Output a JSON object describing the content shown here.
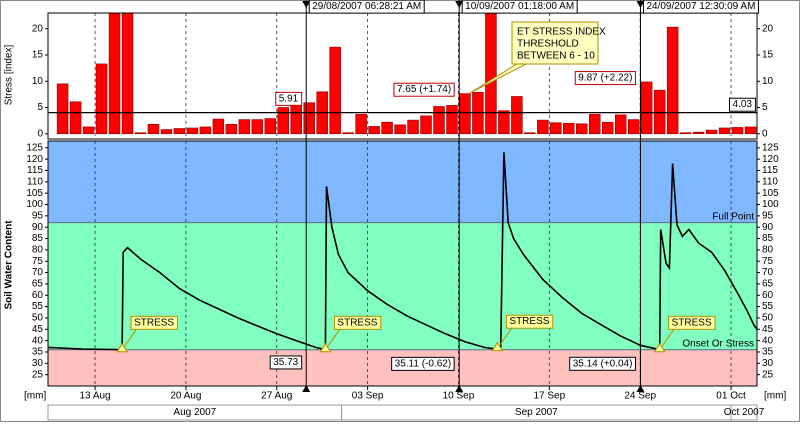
{
  "chart_data": [
    {
      "type": "bar",
      "y_label": "Stress [index]",
      "color": "#ff0000",
      "x": [
        "2007-08-10",
        "2007-08-11",
        "2007-08-12",
        "2007-08-13",
        "2007-08-14",
        "2007-08-15",
        "2007-08-16",
        "2007-08-17",
        "2007-08-18",
        "2007-08-19",
        "2007-08-20",
        "2007-08-21",
        "2007-08-22",
        "2007-08-23",
        "2007-08-24",
        "2007-08-25",
        "2007-08-26",
        "2007-08-27",
        "2007-08-28",
        "2007-08-29",
        "2007-08-30",
        "2007-08-31",
        "2007-09-01",
        "2007-09-02",
        "2007-09-03",
        "2007-09-04",
        "2007-09-05",
        "2007-09-06",
        "2007-09-07",
        "2007-09-08",
        "2007-09-09",
        "2007-09-10",
        "2007-09-11",
        "2007-09-12",
        "2007-09-13",
        "2007-09-14",
        "2007-09-15",
        "2007-09-16",
        "2007-09-17",
        "2007-09-18",
        "2007-09-19",
        "2007-09-20",
        "2007-09-21",
        "2007-09-22",
        "2007-09-23",
        "2007-09-24",
        "2007-09-25",
        "2007-09-26",
        "2007-09-27",
        "2007-09-28",
        "2007-09-29",
        "2007-09-30",
        "2007-10-01",
        "2007-10-02"
      ],
      "values": [
        9.5,
        6.1,
        1.3,
        13.3,
        23,
        23,
        0.2,
        1.8,
        0.8,
        1,
        1.1,
        1.3,
        2.8,
        1.8,
        2.7,
        2.7,
        2.9,
        5,
        6.2,
        5.91,
        8,
        16.5,
        0.2,
        3.7,
        1.4,
        2.2,
        1.7,
        2.6,
        3.4,
        5.2,
        5.4,
        7.65,
        7.9,
        23,
        4.4,
        7.1,
        0.2,
        2.6,
        2.1,
        2,
        1.9,
        3.7,
        2.2,
        3.6,
        2.7,
        9.87,
        8.3,
        20.3,
        0.2,
        0.3,
        0.7,
        1.1,
        1.2,
        1.3
      ],
      "ylim": [
        -1,
        23
      ],
      "yticks": [
        0,
        5,
        10,
        15,
        20
      ],
      "threshold": 4.03
    },
    {
      "type": "line",
      "y_label": "Soil Water Content",
      "color": "#000000",
      "x": [
        "2007-08-09T09:00",
        "2007-08-12T00:00",
        "2007-08-15T02:00",
        "2007-08-15T04:00",
        "2007-08-15T12:00",
        "2007-08-16T12:00",
        "2007-08-18T00:00",
        "2007-08-19T12:00",
        "2007-08-21T00:00",
        "2007-08-22T12:00",
        "2007-08-24T00:00",
        "2007-08-25T12:00",
        "2007-08-27T00:00",
        "2007-08-28T12:00",
        "2007-08-30T00:00",
        "2007-08-30T18:00",
        "2007-08-30T20:00",
        "2007-08-31T06:00",
        "2007-08-31T18:00",
        "2007-09-01T12:00",
        "2007-09-03T00:00",
        "2007-09-04T12:00",
        "2007-09-06T00:00",
        "2007-09-07T12:00",
        "2007-09-09T00:00",
        "2007-09-10T12:00",
        "2007-09-12T00:00",
        "2007-09-13T06:00",
        "2007-09-13T12:00",
        "2007-09-13T20:00",
        "2007-09-14T06:00",
        "2007-09-15T00:00",
        "2007-09-16T12:00",
        "2007-09-18T00:00",
        "2007-09-19T12:00",
        "2007-09-21T00:00",
        "2007-09-22T12:00",
        "2007-09-24T00:00",
        "2007-09-25T12:00",
        "2007-09-25T14:00",
        "2007-09-26T00:00",
        "2007-09-26T06:00",
        "2007-09-26T12:00",
        "2007-09-26T20:00",
        "2007-09-27T06:00",
        "2007-09-27T18:00",
        "2007-09-28T12:00",
        "2007-09-29T12:00",
        "2007-09-30T12:00",
        "2007-10-01T12:00",
        "2007-10-02T06:00",
        "2007-10-02T18:00",
        "2007-10-03T00:00"
      ],
      "values": [
        37,
        36.3,
        36,
        79,
        81,
        76,
        70,
        63,
        58,
        54,
        50,
        46.5,
        43,
        40,
        37,
        36,
        108,
        90,
        78,
        70,
        62,
        56,
        51,
        47,
        43,
        39.5,
        37,
        36,
        123,
        92,
        85,
        78,
        67,
        59,
        52,
        47,
        42,
        38,
        36,
        89,
        74,
        72,
        118,
        91,
        86,
        89,
        83,
        79,
        71,
        61,
        53,
        47,
        45
      ],
      "ylim": [
        20,
        128
      ],
      "yticks": [
        25,
        30,
        35,
        40,
        45,
        50,
        55,
        60,
        65,
        70,
        75,
        80,
        85,
        90,
        95,
        100,
        105,
        110,
        115,
        120,
        125
      ],
      "full_point": {
        "label": "Full Point",
        "value": 92
      },
      "onset_of_stress": {
        "label": "Onset Or Stress",
        "value": 36
      },
      "band_colors": {
        "above": "#80b8ff",
        "between": "#80ffc0",
        "below": "#ffc0c0"
      },
      "stress_events": [
        {
          "x": "2007-08-15T02:00",
          "y": 36,
          "label": "STRESS"
        },
        {
          "x": "2007-08-30T18:00",
          "y": 36,
          "label": "STRESS"
        },
        {
          "x": "2007-09-13T00:00",
          "y": 36.5,
          "label": "STRESS"
        },
        {
          "x": "2007-09-25T12:00",
          "y": 36,
          "label": "STRESS"
        }
      ]
    }
  ],
  "x_axis": {
    "xlim": [
      "2007-08-09T09:00",
      "2007-10-03T00:00"
    ],
    "units": "[mm]",
    "xticks": [
      {
        "value": "2007-08-13",
        "label": "13 Aug"
      },
      {
        "value": "2007-08-20",
        "label": "20 Aug"
      },
      {
        "value": "2007-08-27",
        "label": "27 Aug"
      },
      {
        "value": "2007-09-03",
        "label": "03 Sep"
      },
      {
        "value": "2007-09-10",
        "label": "10 Sep"
      },
      {
        "value": "2007-09-17",
        "label": "17 Sep"
      },
      {
        "value": "2007-09-24",
        "label": "24 Sep"
      },
      {
        "value": "2007-10-01",
        "label": "01 Oct"
      }
    ],
    "months": [
      {
        "label": "Aug 2007",
        "start": "2007-08-01",
        "end": "2007-09-01"
      },
      {
        "label": "Sep 2007",
        "start": "2007-09-01",
        "end": "2007-10-01"
      },
      {
        "label": "Oct 2007",
        "start": "2007-10-01",
        "end": "2007-11-01"
      }
    ]
  },
  "cursors": [
    {
      "time": "29/08/2007 06:28:21 AM",
      "x": "2007-08-29T06:28:21",
      "stress": 5.91,
      "water": 35.73
    },
    {
      "time": "10/09/2007 01:18:00 AM",
      "x": "2007-09-10T01:18:00",
      "stress": {
        "value": 7.65,
        "label": "7.65 (+1.74)"
      },
      "water": {
        "value": 35.11,
        "label": "35.11 (-0.62)"
      }
    },
    {
      "time": "24/09/2007 12:30:09 AM",
      "x": "2007-09-24T00:30:09",
      "stress": {
        "value": 9.87,
        "label": "9.87 (+2.22)"
      },
      "water": {
        "value": 35.14,
        "label": "35.14 (+0.04)"
      }
    }
  ],
  "callout": {
    "lines": [
      "ET STRESS INDEX",
      "THRESHOLD",
      "BETWEEN 6 - 10"
    ]
  }
}
